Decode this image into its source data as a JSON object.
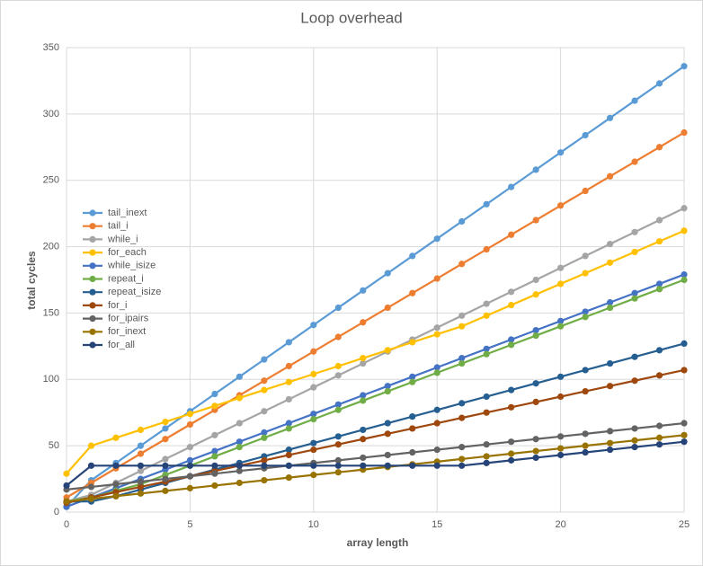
{
  "chart_data": {
    "type": "line",
    "title": "Loop overhead",
    "x_label": "array length",
    "y_label": "total cycles",
    "x": [
      0,
      1,
      2,
      3,
      4,
      5,
      6,
      7,
      8,
      9,
      10,
      11,
      12,
      13,
      14,
      15,
      16,
      17,
      18,
      19,
      20,
      21,
      22,
      23,
      24,
      25
    ],
    "xlim": [
      0,
      25
    ],
    "xticks": [
      0,
      5,
      10,
      15,
      20,
      25
    ],
    "ylim": [
      0,
      350
    ],
    "yticks": [
      0,
      50,
      100,
      150,
      200,
      250,
      300,
      350
    ],
    "grid": true,
    "legend": "left",
    "series": [
      {
        "name": "tail_inext",
        "color": "#5b9bd5",
        "values": [
          4,
          24,
          37,
          50,
          63,
          76,
          89,
          102,
          115,
          128,
          141,
          154,
          167,
          180,
          193,
          206,
          219,
          232,
          245,
          258,
          271,
          284,
          297,
          310,
          323,
          336
        ]
      },
      {
        "name": "tail_i",
        "color": "#ed7d31",
        "values": [
          11,
          22,
          33,
          44,
          55,
          66,
          77,
          88,
          99,
          110,
          121,
          132,
          143,
          154,
          165,
          176,
          187,
          198,
          209,
          220,
          231,
          242,
          253,
          264,
          275,
          286
        ]
      },
      {
        "name": "while_i",
        "color": "#a5a5a5",
        "values": [
          8,
          13,
          22,
          31,
          40,
          49,
          58,
          67,
          76,
          85,
          94,
          103,
          112,
          121,
          130,
          139,
          148,
          157,
          166,
          175,
          184,
          193,
          202,
          211,
          220,
          229
        ]
      },
      {
        "name": "for_each",
        "color": "#ffc000",
        "values": [
          29,
          50,
          56,
          62,
          68,
          74,
          80,
          86,
          92,
          98,
          104,
          110,
          116,
          122,
          128,
          134,
          140,
          148,
          156,
          164,
          172,
          180,
          188,
          196,
          204,
          212
        ]
      },
      {
        "name": "while_isize",
        "color": "#4472c4",
        "values": [
          4,
          11,
          18,
          25,
          32,
          39,
          46,
          53,
          60,
          67,
          74,
          81,
          88,
          95,
          102,
          109,
          116,
          123,
          130,
          137,
          144,
          151,
          158,
          165,
          172,
          179
        ]
      },
      {
        "name": "repeat_i",
        "color": "#70ad47",
        "values": [
          8,
          11,
          16,
          21,
          28,
          35,
          42,
          49,
          56,
          63,
          70,
          77,
          84,
          91,
          98,
          105,
          112,
          119,
          126,
          133,
          140,
          147,
          154,
          161,
          168,
          175
        ]
      },
      {
        "name": "repeat_isize",
        "color": "#255e91",
        "values": [
          8,
          8,
          12,
          17,
          22,
          27,
          32,
          37,
          42,
          47,
          52,
          57,
          62,
          67,
          72,
          77,
          82,
          87,
          92,
          97,
          102,
          107,
          112,
          117,
          122,
          127
        ]
      },
      {
        "name": "for_i",
        "color": "#9e480e",
        "values": [
          7,
          11,
          15,
          19,
          23,
          27,
          31,
          35,
          39,
          43,
          47,
          51,
          55,
          59,
          63,
          67,
          71,
          75,
          79,
          83,
          87,
          91,
          95,
          99,
          103,
          107
        ]
      },
      {
        "name": "for_ipairs",
        "color": "#636363",
        "values": [
          17,
          19,
          21,
          23,
          25,
          27,
          29,
          31,
          33,
          35,
          37,
          39,
          41,
          43,
          45,
          47,
          49,
          51,
          53,
          55,
          57,
          59,
          61,
          63,
          65,
          67
        ]
      },
      {
        "name": "for_inext",
        "color": "#997300",
        "values": [
          8,
          10,
          12,
          14,
          16,
          18,
          20,
          22,
          24,
          26,
          28,
          30,
          32,
          34,
          36,
          38,
          40,
          42,
          44,
          46,
          48,
          50,
          52,
          54,
          56,
          58
        ]
      },
      {
        "name": "for_all",
        "color": "#264478",
        "values": [
          20,
          35,
          35,
          35,
          35,
          35,
          35,
          35,
          35,
          35,
          35,
          35,
          35,
          35,
          35,
          35,
          35,
          37,
          39,
          41,
          43,
          45,
          47,
          49,
          51,
          53
        ]
      }
    ]
  }
}
